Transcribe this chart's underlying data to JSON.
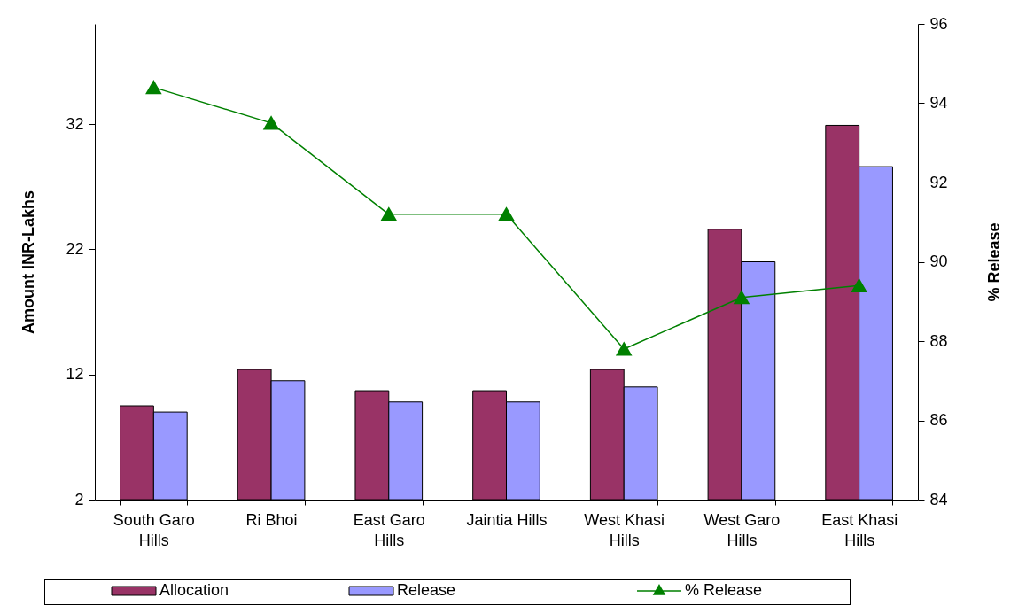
{
  "chart_data": {
    "type": "bar",
    "categories": [
      "South Garo Hills",
      "Ri Bhoi",
      "East Garo Hills",
      "Jaintia Hills",
      "West Khasi Hills",
      "West Garo Hills",
      "East Khasi Hills"
    ],
    "series": [
      {
        "name": "Allocation",
        "color": "#993366",
        "values": [
          9.5,
          12.4,
          10.7,
          10.7,
          12.4,
          23.6,
          31.9
        ]
      },
      {
        "name": "Release",
        "color": "#9999ff",
        "values": [
          9.0,
          11.5,
          9.8,
          9.8,
          11.0,
          21.0,
          28.6
        ]
      },
      {
        "name": "% Release",
        "type": "line",
        "axis": "y2",
        "color": "#008000",
        "values": [
          94.4,
          93.5,
          91.2,
          91.2,
          87.8,
          89.1,
          89.4
        ]
      }
    ],
    "ylabel": "Amount INR-Lakhs",
    "y2label": "% Release",
    "ylim": [
      2,
      40
    ],
    "yticks": [
      2,
      12,
      22,
      32
    ],
    "y2lim": [
      84,
      96
    ],
    "y2ticks": [
      84,
      86,
      88,
      90,
      92,
      94,
      96
    ],
    "legend": "bottom",
    "grid": false,
    "marker": "triangle"
  }
}
